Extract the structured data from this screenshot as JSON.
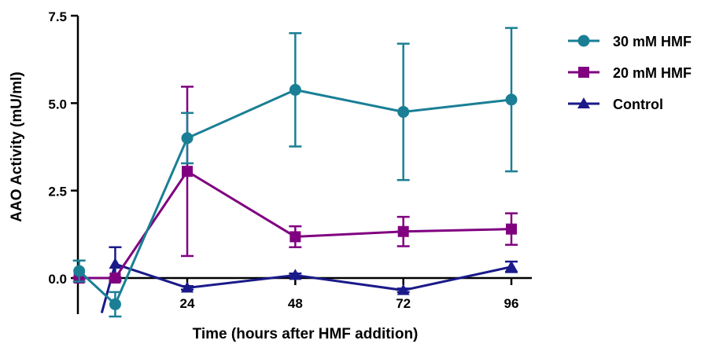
{
  "chart_data": {
    "type": "line",
    "xlabel": "Time (hours after HMF addition)",
    "ylabel": "AAO Activity (mU/ml)",
    "xlim": [
      -2,
      105
    ],
    "ylim": [
      -1,
      7.5
    ],
    "x_ticks": [
      24,
      48,
      72,
      96
    ],
    "x_tick_labels": [
      "24",
      "48",
      "72",
      "96"
    ],
    "y_ticks": [
      0,
      2.5,
      5,
      7.5
    ],
    "y_tick_labels": [
      "0.0",
      "2.5",
      "5.0",
      "7.5"
    ],
    "legend_position": "top-right",
    "series": [
      {
        "name": "30 mM HMF",
        "color": "#1a7f95",
        "marker": "circle",
        "x": [
          0,
          8,
          24,
          48,
          72,
          96
        ],
        "y": [
          0.2,
          -0.75,
          4.0,
          5.38,
          4.75,
          5.1
        ],
        "err": [
          0.3,
          0.35,
          0.72,
          1.62,
          1.95,
          2.05
        ]
      },
      {
        "name": "20 mM HMF",
        "color": "#800080",
        "marker": "square",
        "x": [
          0,
          8,
          24,
          48,
          72,
          96
        ],
        "y": [
          0.0,
          0.0,
          3.05,
          1.18,
          1.33,
          1.4
        ],
        "err": [
          0.02,
          0.02,
          2.42,
          0.3,
          0.42,
          0.45
        ]
      },
      {
        "name": "Control",
        "color": "#1a1a8a",
        "marker": "triangle",
        "x": [
          5,
          8,
          24,
          48,
          72,
          96
        ],
        "y": [
          -1.0,
          0.4,
          -0.28,
          0.08,
          -0.35,
          0.32
        ],
        "err": [
          0.0,
          0.48,
          0.05,
          0.05,
          0.05,
          0.15
        ]
      }
    ]
  }
}
